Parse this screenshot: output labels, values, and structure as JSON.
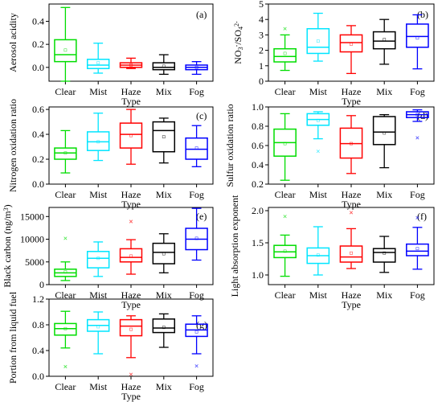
{
  "chart_data": [
    {
      "type": "box",
      "panel_label": "(a)",
      "ylabel": "Aerosol acidity",
      "xlabel": "Type",
      "categories": [
        "Clear",
        "Mist",
        "Haze",
        "Mix",
        "Fog"
      ],
      "colors": [
        "#00dd00",
        "#00e5ff",
        "#ff0000",
        "#000000",
        "#0000ff"
      ],
      "ylim": [
        -0.12,
        0.55
      ],
      "yticks": [
        0.0,
        0.2,
        0.4
      ],
      "ytick_labels": [
        "0.0",
        "0.2",
        "0.4"
      ],
      "boxes": [
        {
          "min": -0.12,
          "q1": 0.05,
          "median": 0.11,
          "q3": 0.24,
          "max": 0.52,
          "mean": 0.15
        },
        {
          "min": -0.05,
          "q1": -0.01,
          "median": 0.02,
          "q3": 0.07,
          "max": 0.21,
          "mean": 0.04
        },
        {
          "min": -0.01,
          "q1": 0.0,
          "median": 0.02,
          "q3": 0.04,
          "max": 0.08,
          "mean": 0.02
        },
        {
          "min": -0.06,
          "q1": -0.02,
          "median": 0.0,
          "q3": 0.04,
          "max": 0.11,
          "mean": 0.01
        },
        {
          "min": -0.06,
          "q1": -0.02,
          "median": 0.0,
          "q3": 0.02,
          "max": 0.05,
          "mean": 0.0
        }
      ]
    },
    {
      "type": "box",
      "panel_label": "(b)",
      "ylabel": "NO3-/SO42-",
      "ylabel_parts": {
        "a": "NO",
        "b": "3",
        "c": "-",
        "d": "/SO",
        "e": "4",
        "f": "2-"
      },
      "xlabel": "Type",
      "categories": [
        "Clear",
        "Mist",
        "Haze",
        "Mix",
        "Fog"
      ],
      "colors": [
        "#00dd00",
        "#00e5ff",
        "#ff0000",
        "#000000",
        "#0000ff"
      ],
      "ylim": [
        0,
        5
      ],
      "yticks": [
        0,
        1,
        2,
        3,
        4,
        5
      ],
      "ytick_labels": [
        "0",
        "1",
        "2",
        "3",
        "4",
        "5"
      ],
      "boxes": [
        {
          "min": 0.7,
          "q1": 1.25,
          "median": 1.6,
          "q3": 2.1,
          "max": 3.0,
          "mean": 1.8,
          "outliers": [
            3.4
          ]
        },
        {
          "min": 1.3,
          "q1": 1.8,
          "median": 2.2,
          "q3": 3.4,
          "max": 4.4,
          "mean": 2.6
        },
        {
          "min": 0.5,
          "q1": 1.9,
          "median": 2.5,
          "q3": 3.0,
          "max": 3.6,
          "mean": 2.4
        },
        {
          "min": 1.1,
          "q1": 2.1,
          "median": 2.6,
          "q3": 3.2,
          "max": 4.0,
          "mean": 2.7
        },
        {
          "min": 0.8,
          "q1": 2.2,
          "median": 2.9,
          "q3": 3.7,
          "max": 4.3,
          "mean": 2.8
        }
      ]
    },
    {
      "type": "box",
      "panel_label": "(c)",
      "ylabel": "Nitrogen oxidation ratio",
      "xlabel": "Type",
      "categories": [
        "Clear",
        "Mist",
        "Haze",
        "Mix",
        "Fog"
      ],
      "colors": [
        "#00dd00",
        "#00e5ff",
        "#ff0000",
        "#000000",
        "#0000ff"
      ],
      "ylim": [
        0,
        0.62
      ],
      "yticks": [
        0.0,
        0.2,
        0.4,
        0.6
      ],
      "ytick_labels": [
        "0.0",
        "0.2",
        "0.4",
        "0.6"
      ],
      "boxes": [
        {
          "min": 0.09,
          "q1": 0.2,
          "median": 0.25,
          "q3": 0.29,
          "max": 0.43,
          "mean": 0.25
        },
        {
          "min": 0.19,
          "q1": 0.27,
          "median": 0.34,
          "q3": 0.42,
          "max": 0.57,
          "mean": 0.34
        },
        {
          "min": 0.16,
          "q1": 0.29,
          "median": 0.4,
          "q3": 0.49,
          "max": 0.6,
          "mean": 0.39
        },
        {
          "min": 0.17,
          "q1": 0.26,
          "median": 0.43,
          "q3": 0.5,
          "max": 0.53,
          "mean": 0.38
        },
        {
          "min": 0.14,
          "q1": 0.2,
          "median": 0.28,
          "q3": 0.37,
          "max": 0.47,
          "mean": 0.29
        }
      ]
    },
    {
      "type": "box",
      "panel_label": "(d)",
      "ylabel": "Sulfur oxidation ratio",
      "xlabel": "Type",
      "categories": [
        "Clear",
        "Mist",
        "Haze",
        "Mix",
        "Fog"
      ],
      "colors": [
        "#00dd00",
        "#00e5ff",
        "#ff0000",
        "#000000",
        "#0000ff"
      ],
      "ylim": [
        0.2,
        1.0
      ],
      "yticks": [
        0.2,
        0.4,
        0.6,
        0.8,
        1.0
      ],
      "ytick_labels": [
        "0.2",
        "0.4",
        "0.6",
        "0.8",
        "1.0"
      ],
      "boxes": [
        {
          "min": 0.24,
          "q1": 0.49,
          "median": 0.63,
          "q3": 0.77,
          "max": 0.93,
          "mean": 0.62
        },
        {
          "min": 0.67,
          "q1": 0.81,
          "median": 0.87,
          "q3": 0.93,
          "max": 0.95,
          "mean": 0.86,
          "outliers": [
            0.54
          ]
        },
        {
          "min": 0.31,
          "q1": 0.47,
          "median": 0.62,
          "q3": 0.78,
          "max": 0.91,
          "mean": 0.62
        },
        {
          "min": 0.37,
          "q1": 0.61,
          "median": 0.74,
          "q3": 0.9,
          "max": 0.92,
          "mean": 0.73
        },
        {
          "min": 0.85,
          "q1": 0.89,
          "median": 0.92,
          "q3": 0.95,
          "max": 0.97,
          "mean": 0.92,
          "outliers": [
            0.68
          ]
        }
      ]
    },
    {
      "type": "box",
      "panel_label": "(e)",
      "ylabel": "Black carbon (ng/m3)",
      "ylabel_parts": {
        "a": "Black carbon (ng/m",
        "b": "3",
        "c": ")"
      },
      "xlabel": "Type",
      "categories": [
        "Clear",
        "Mist",
        "Haze",
        "Mix",
        "Fog"
      ],
      "colors": [
        "#00dd00",
        "#00e5ff",
        "#ff0000",
        "#000000",
        "#0000ff"
      ],
      "ylim": [
        0,
        17000
      ],
      "yticks": [
        0,
        5000,
        10000,
        15000
      ],
      "ytick_labels": [
        "0",
        "5000",
        "10000",
        "15000"
      ],
      "boxes": [
        {
          "min": 900,
          "q1": 1800,
          "median": 2600,
          "q3": 3400,
          "max": 5000,
          "mean": 2800,
          "outliers": [
            10200
          ]
        },
        {
          "min": 1800,
          "q1": 3700,
          "median": 5800,
          "q3": 7300,
          "max": 9400,
          "mean": 5800
        },
        {
          "min": 2300,
          "q1": 5000,
          "median": 6000,
          "q3": 7900,
          "max": 9900,
          "mean": 6300,
          "outliers": [
            13900
          ]
        },
        {
          "min": 2600,
          "q1": 4600,
          "median": 7100,
          "q3": 9100,
          "max": 11200,
          "mean": 6800
        },
        {
          "min": 5400,
          "q1": 7700,
          "median": 10000,
          "q3": 12400,
          "max": 16800,
          "mean": 10200
        }
      ]
    },
    {
      "type": "box",
      "panel_label": "(f)",
      "ylabel": "Light absorption exponent",
      "xlabel": "Type",
      "categories": [
        "Clear",
        "Mist",
        "Haze",
        "Mix",
        "Fog"
      ],
      "colors": [
        "#00dd00",
        "#00e5ff",
        "#ff0000",
        "#000000",
        "#0000ff"
      ],
      "ylim": [
        0.85,
        2.05
      ],
      "yticks": [
        1.0,
        1.5,
        2.0
      ],
      "ytick_labels": [
        "1.0",
        "1.5",
        "2.0"
      ],
      "boxes": [
        {
          "min": 0.98,
          "q1": 1.27,
          "median": 1.36,
          "q3": 1.46,
          "max": 1.62,
          "mean": 1.37,
          "outliers": [
            1.91
          ]
        },
        {
          "min": 1.0,
          "q1": 1.18,
          "median": 1.3,
          "q3": 1.42,
          "max": 1.75,
          "mean": 1.31
        },
        {
          "min": 1.1,
          "q1": 1.2,
          "median": 1.28,
          "q3": 1.45,
          "max": 1.72,
          "mean": 1.34,
          "outliers": [
            1.97
          ]
        },
        {
          "min": 1.04,
          "q1": 1.2,
          "median": 1.35,
          "q3": 1.41,
          "max": 1.6,
          "mean": 1.34
        },
        {
          "min": 1.09,
          "q1": 1.3,
          "median": 1.37,
          "q3": 1.48,
          "max": 1.74,
          "mean": 1.41,
          "outliers": [
            1.89
          ]
        }
      ]
    },
    {
      "type": "box",
      "panel_label": "(g)",
      "ylabel": "Portion from liquid fuel",
      "xlabel": "Type",
      "categories": [
        "Clear",
        "Mist",
        "Haze",
        "Mix",
        "Fog"
      ],
      "colors": [
        "#00dd00",
        "#00e5ff",
        "#ff0000",
        "#000000",
        "#0000ff"
      ],
      "ylim": [
        0,
        1.2
      ],
      "yticks": [
        0.0,
        0.4,
        0.8,
        1.2
      ],
      "ytick_labels": [
        "0.0",
        "0.4",
        "0.8",
        "1.2"
      ],
      "boxes": [
        {
          "min": 0.44,
          "q1": 0.64,
          "median": 0.74,
          "q3": 0.82,
          "max": 1.01,
          "mean": 0.74,
          "outliers": [
            0.15
          ]
        },
        {
          "min": 0.35,
          "q1": 0.7,
          "median": 0.79,
          "q3": 0.88,
          "max": 1.0,
          "mean": 0.77
        },
        {
          "min": 0.29,
          "q1": 0.63,
          "median": 0.78,
          "q3": 0.88,
          "max": 0.94,
          "mean": 0.73,
          "outliers": [
            0.03
          ]
        },
        {
          "min": 0.45,
          "q1": 0.68,
          "median": 0.75,
          "q3": 0.89,
          "max": 0.97,
          "mean": 0.76
        },
        {
          "min": 0.35,
          "q1": 0.62,
          "median": 0.72,
          "q3": 0.81,
          "max": 0.94,
          "mean": 0.69,
          "outliers": [
            0.16
          ]
        }
      ]
    }
  ]
}
